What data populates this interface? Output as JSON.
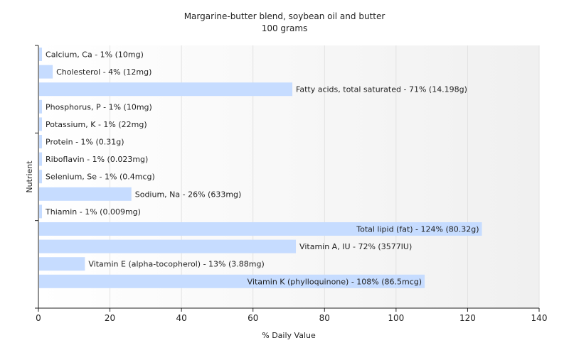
{
  "chart_data": {
    "type": "bar",
    "orientation": "horizontal",
    "title": "Margarine-butter blend, soybean oil and butter",
    "subtitle": "100 grams",
    "xlabel": "% Daily Value",
    "ylabel": "Nutrient",
    "xlim": [
      0,
      140
    ],
    "xticks": [
      0,
      20,
      40,
      60,
      80,
      100,
      120,
      140
    ],
    "grid": true,
    "bar_color": "#c6dcff",
    "categories": [
      "Calcium, Ca",
      "Cholesterol",
      "Fatty acids, total saturated",
      "Phosphorus, P",
      "Potassium, K",
      "Protein",
      "Riboflavin",
      "Selenium, Se",
      "Sodium, Na",
      "Thiamin",
      "Total lipid (fat)",
      "Vitamin A, IU",
      "Vitamin E (alpha-tocopherol)",
      "Vitamin K (phylloquinone)"
    ],
    "values": [
      1,
      4,
      71,
      1,
      1,
      1,
      1,
      1,
      26,
      1,
      124,
      72,
      13,
      108
    ],
    "labels": [
      "Calcium, Ca - 1% (10mg)",
      "Cholesterol - 4% (12mg)",
      "Fatty acids, total saturated - 71% (14.198g)",
      "Phosphorus, P - 1% (10mg)",
      "Potassium, K - 1% (22mg)",
      "Protein - 1% (0.31g)",
      "Riboflavin - 1% (0.023mg)",
      "Selenium, Se - 1% (0.4mcg)",
      "Sodium, Na - 26% (633mg)",
      "Thiamin - 1% (0.009mg)",
      "Total lipid (fat) - 124% (80.32g)",
      "Vitamin A, IU - 72% (3577IU)",
      "Vitamin E (alpha-tocopherol) - 13% (3.88mg)",
      "Vitamin K (phylloquinone) - 108% (86.5mcg)"
    ],
    "label_inside_bar": [
      false,
      false,
      false,
      false,
      false,
      false,
      false,
      false,
      false,
      false,
      true,
      false,
      false,
      true
    ]
  }
}
